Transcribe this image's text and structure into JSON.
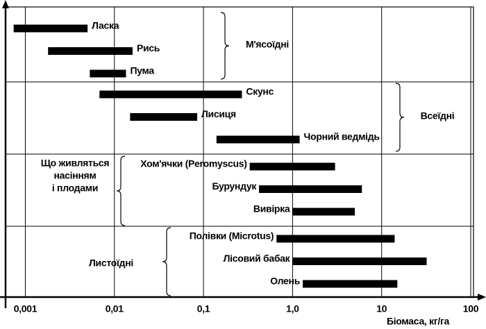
{
  "chart_data": {
    "type": "range-bar",
    "x_label": "Біомаса, кг/га",
    "xscale": "log",
    "xlim": [
      0.0006,
      100
    ],
    "xticks": [
      {
        "value": 0.001,
        "label": "0,001"
      },
      {
        "value": 0.01,
        "label": "0,01"
      },
      {
        "value": 0.1,
        "label": "0,1"
      },
      {
        "value": 1,
        "label": "1,0"
      },
      10,
      100
    ],
    "grid": true,
    "color": "#000000",
    "groups": [
      {
        "name": [
          "М'ясоїдні"
        ],
        "categories": [
          "Ласка",
          "Рись",
          "Пума"
        ],
        "values": [
          [
            0.00074,
            0.005
          ],
          [
            0.0018,
            0.016
          ],
          [
            0.0053,
            0.0135
          ]
        ]
      },
      {
        "name": [
          "Всеїдні"
        ],
        "categories": [
          "Скунс",
          "Лисиця",
          "Чорний ведмідь"
        ],
        "values": [
          [
            0.0068,
            0.27
          ],
          [
            0.015,
            0.085
          ],
          [
            0.14,
            1.2
          ]
        ]
      },
      {
        "name": [
          "Що живляться",
          "насінням",
          "і плодами"
        ],
        "categories": [
          "Хом'ячки (Peromyscus)",
          "Бурундук",
          "Вивірка"
        ],
        "values": [
          [
            0.33,
            3
          ],
          [
            0.42,
            6
          ],
          [
            1,
            5
          ]
        ]
      },
      {
        "name": [
          "Листоїдні"
        ],
        "categories": [
          "Полівки (Microtus)",
          "Лісовий бабак",
          "Олень"
        ],
        "values": [
          [
            0.66,
            14
          ],
          [
            1,
            32
          ],
          [
            1.3,
            15
          ]
        ]
      }
    ]
  }
}
